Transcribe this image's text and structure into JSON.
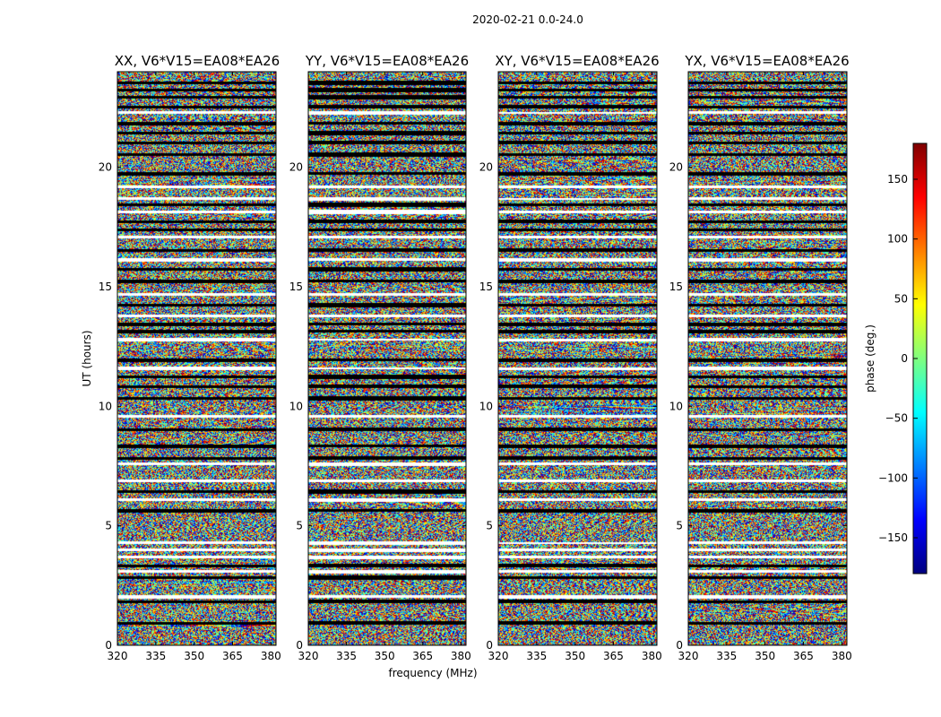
{
  "figure": {
    "suptitle": "2020-02-21 0.0-24.0"
  },
  "chart_data": {
    "type": "heatmap",
    "suptitle": "2020-02-21 0.0-24.0",
    "xlabel": "frequency (MHz)",
    "ylabel": "UT (hours)",
    "xlim": [
      320,
      382
    ],
    "ylim": [
      0,
      24
    ],
    "xticks": [
      "320",
      "335",
      "350",
      "365",
      "380"
    ],
    "yticks": [
      "0",
      "5",
      "10",
      "15",
      "20"
    ],
    "panels": [
      {
        "title": "XX, V6*V15=EA08*EA26",
        "polarization": "XX"
      },
      {
        "title": "YY, V6*V15=EA08*EA26",
        "polarization": "YY"
      },
      {
        "title": "XY, V6*V15=EA08*EA26",
        "polarization": "XY"
      },
      {
        "title": "YX, V6*V15=EA08*EA26",
        "polarization": "YX"
      }
    ],
    "colorbar": {
      "label": "phase (deg.)",
      "range": [
        -180,
        180
      ],
      "ticks": [
        "150",
        "100",
        "50",
        "0",
        "−50",
        "−100",
        "−150"
      ],
      "colormap": "jet",
      "stops": [
        "#00007f",
        "#0000ff",
        "#007fff",
        "#00ffff",
        "#7fff7f",
        "#ffff00",
        "#ff7f00",
        "#ff0000",
        "#7f0000"
      ]
    },
    "flagged_time_rows_hours": [
      0.95,
      1.85,
      2.05,
      2.85,
      3.1,
      3.35,
      3.7,
      4.0,
      4.3,
      5.65,
      6.1,
      6.45,
      6.9,
      7.6,
      7.85,
      8.35,
      9.05,
      9.6,
      10.35,
      10.85,
      11.25,
      11.6,
      11.95,
      12.8,
      13.15,
      13.45,
      13.8,
      14.25,
      14.7,
      15.25,
      15.75,
      16.15,
      16.55,
      17.1,
      17.4,
      17.75,
      18.15,
      18.45,
      18.7,
      19.2,
      19.75,
      20.55,
      21.05,
      21.45,
      21.85,
      22.3,
      22.55,
      22.95,
      23.25,
      23.55
    ],
    "note": "Per-channel phase values are dense noise-like data; rendered procedurally with jet colormap and flagged (white/black) time rows."
  }
}
